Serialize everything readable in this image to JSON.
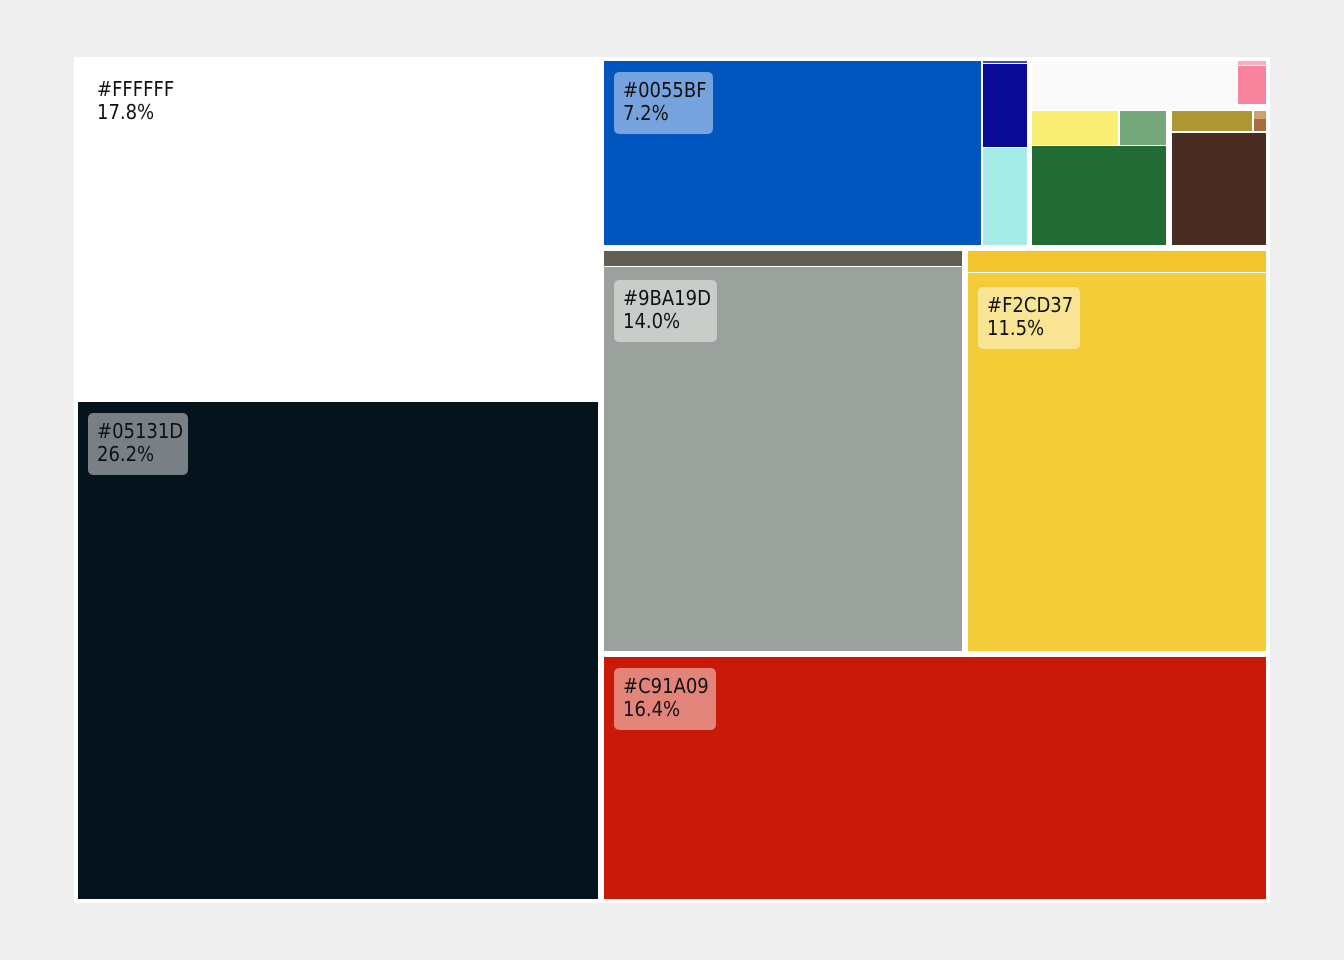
{
  "chart_data": {
    "type": "treemap",
    "title": "",
    "tiles": [
      {
        "label": "#FFFFFF",
        "color": "#FFFFFF",
        "percent": 17.8,
        "percent_label": "17.8%",
        "labeled": true
      },
      {
        "label": "#05131D",
        "color": "#05131D",
        "percent": 26.2,
        "percent_label": "26.2%",
        "labeled": true
      },
      {
        "label": "#0055BF",
        "color": "#0055BF",
        "percent": 7.2,
        "percent_label": "7.2%",
        "labeled": true
      },
      {
        "label": "#9BA19D",
        "color": "#9BA19D",
        "percent": 14.0,
        "percent_label": "14.0%",
        "labeled": true
      },
      {
        "label": "#F2CD37",
        "color": "#F2CD37",
        "percent": 11.5,
        "percent_label": "11.5%",
        "labeled": true
      },
      {
        "label": "#C91A09",
        "color": "#C91A09",
        "percent": 16.4,
        "percent_label": "16.4%",
        "labeled": true
      },
      {
        "label": "",
        "color": "#0A0A96",
        "percent": 0.8,
        "labeled": false
      },
      {
        "label": "",
        "color": "#A5ECE6",
        "percent": 0.8,
        "labeled": false
      },
      {
        "label": "",
        "color": "#FAFAFA",
        "percent": 0.9,
        "labeled": false
      },
      {
        "label": "",
        "color": "#F7EE73",
        "percent": 0.4,
        "labeled": false
      },
      {
        "label": "",
        "color": "#76A77C",
        "percent": 0.2,
        "labeled": false
      },
      {
        "label": "",
        "color": "#226B35",
        "percent": 1.3,
        "labeled": false
      },
      {
        "label": "",
        "color": "#F8839C",
        "percent": 0.3,
        "labeled": false
      },
      {
        "label": "",
        "color": "#AC9734",
        "percent": 0.2,
        "labeled": false
      },
      {
        "label": "",
        "color": "#A86A3E",
        "percent": 0.1,
        "labeled": false
      },
      {
        "label": "",
        "color": "#4A2D22",
        "percent": 1.1,
        "labeled": false
      },
      {
        "label": "",
        "color": "#5F5F52",
        "percent": 0.5,
        "labeled": false
      }
    ]
  }
}
